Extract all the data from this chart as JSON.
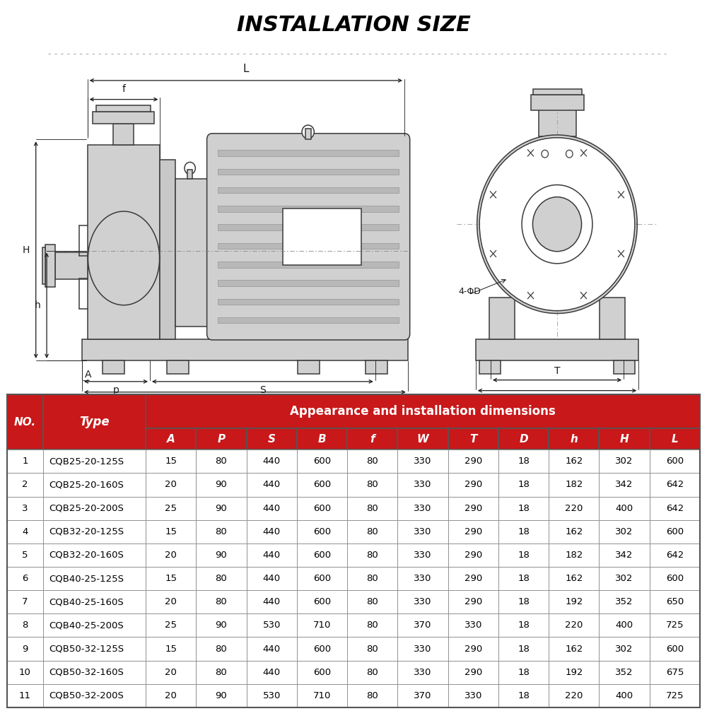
{
  "title": "INSTALLATION SIZE",
  "bg_color": "#ffffff",
  "title_color": "#000000",
  "red_color": "#c8181a",
  "header_text_color": "#ffffff",
  "table_header_main": "Appearance and installation dimensions",
  "col_headers": [
    "NO.",
    "Type",
    "A",
    "P",
    "S",
    "B",
    "f",
    "W",
    "T",
    "D",
    "h",
    "H",
    "L"
  ],
  "sub_headers": [
    "A",
    "P",
    "S",
    "B",
    "f",
    "W",
    "T",
    "D",
    "h",
    "H",
    "L"
  ],
  "rows": [
    [
      1,
      "CQB25-20-125S",
      15,
      80,
      440,
      600,
      80,
      330,
      290,
      18,
      162,
      302,
      600
    ],
    [
      2,
      "CQB25-20-160S",
      20,
      90,
      440,
      600,
      80,
      330,
      290,
      18,
      182,
      342,
      642
    ],
    [
      3,
      "CQB25-20-200S",
      25,
      90,
      440,
      600,
      80,
      330,
      290,
      18,
      220,
      400,
      642
    ],
    [
      4,
      "CQB32-20-125S",
      15,
      80,
      440,
      600,
      80,
      330,
      290,
      18,
      162,
      302,
      600
    ],
    [
      5,
      "CQB32-20-160S",
      20,
      90,
      440,
      600,
      80,
      330,
      290,
      18,
      182,
      342,
      642
    ],
    [
      6,
      "CQB40-25-125S",
      15,
      80,
      440,
      600,
      80,
      330,
      290,
      18,
      162,
      302,
      600
    ],
    [
      7,
      "CQB40-25-160S",
      20,
      80,
      440,
      600,
      80,
      330,
      290,
      18,
      192,
      352,
      650
    ],
    [
      8,
      "CQB40-25-200S",
      25,
      90,
      530,
      710,
      80,
      370,
      330,
      18,
      220,
      400,
      725
    ],
    [
      9,
      "CQB50-32-125S",
      15,
      80,
      440,
      600,
      80,
      330,
      290,
      18,
      162,
      302,
      600
    ],
    [
      10,
      "CQB50-32-160S",
      20,
      80,
      440,
      600,
      80,
      330,
      290,
      18,
      192,
      352,
      675
    ],
    [
      11,
      "CQB50-32-200S",
      20,
      90,
      530,
      710,
      80,
      370,
      330,
      18,
      220,
      400,
      725
    ]
  ]
}
